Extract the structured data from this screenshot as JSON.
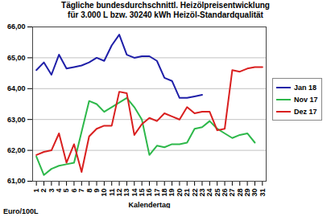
{
  "chart_data": {
    "type": "line",
    "title": "Tägliche bundesdurchschnittl. Heizölpreisentwicklung",
    "subtitle": "für 3.000 L bzw. 30240 kWh Heizöl-Standardqualität",
    "x_label": "Kalendertag",
    "y_label": "Euro/100L",
    "x": [
      1,
      2,
      3,
      4,
      5,
      6,
      7,
      8,
      9,
      10,
      11,
      12,
      13,
      14,
      15,
      16,
      17,
      18,
      19,
      20,
      21,
      22,
      23,
      24,
      25,
      26,
      27,
      28,
      29,
      30,
      31
    ],
    "series": [
      {
        "name": "Jan 18",
        "color": "#1f1fa8",
        "values": [
          64.6,
          64.85,
          64.45,
          65.1,
          64.65,
          64.7,
          64.75,
          64.85,
          65.0,
          64.9,
          65.4,
          65.75,
          65.1,
          65.0,
          65.05,
          65.05,
          64.9,
          64.35,
          64.25,
          63.7,
          63.7,
          63.75,
          63.8,
          null,
          null,
          null,
          null,
          null,
          null,
          null,
          null
        ]
      },
      {
        "name": "Nov 17",
        "color": "#2db84a",
        "values": [
          61.8,
          61.2,
          61.4,
          61.5,
          61.55,
          61.6,
          62.6,
          63.6,
          63.5,
          63.25,
          63.4,
          63.55,
          63.7,
          63.4,
          63.0,
          61.85,
          62.15,
          62.1,
          62.2,
          62.2,
          62.25,
          62.7,
          62.75,
          62.95,
          62.7,
          62.55,
          62.4,
          62.5,
          62.55,
          62.25,
          null
        ]
      },
      {
        "name": "Dez 17",
        "color": "#d91f1f",
        "values": [
          61.85,
          61.95,
          62.0,
          62.55,
          61.6,
          62.2,
          61.3,
          62.45,
          62.7,
          62.8,
          62.8,
          63.9,
          63.85,
          62.5,
          62.85,
          63.05,
          62.95,
          63.2,
          63.1,
          63.0,
          63.4,
          63.2,
          63.25,
          63.25,
          62.65,
          62.7,
          64.6,
          64.55,
          64.65,
          64.7,
          64.7
        ]
      }
    ],
    "xlim": [
      0.5,
      31.5
    ],
    "xticks": [
      1,
      2,
      3,
      4,
      5,
      6,
      7,
      8,
      9,
      10,
      11,
      12,
      13,
      14,
      15,
      16,
      17,
      18,
      19,
      20,
      21,
      22,
      23,
      24,
      25,
      26,
      27,
      28,
      29,
      30,
      31
    ],
    "ylim": [
      61,
      66
    ],
    "yticks": [
      {
        "value": 61,
        "label": "61,00"
      },
      {
        "value": 62,
        "label": "62,00"
      },
      {
        "value": 63,
        "label": "63,00"
      },
      {
        "value": 64,
        "label": "64,00"
      },
      {
        "value": 65,
        "label": "65,00"
      },
      {
        "value": 66,
        "label": "66,00"
      }
    ],
    "grid": true,
    "legend": "right"
  }
}
